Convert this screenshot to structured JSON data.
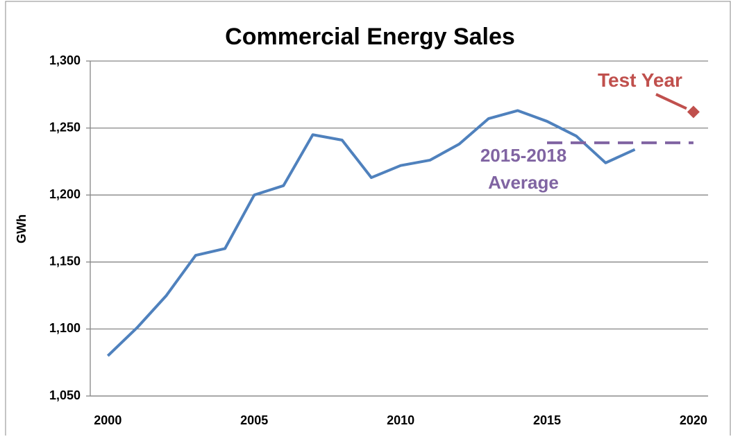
{
  "chart_data": {
    "type": "line",
    "title": "Commercial Energy Sales",
    "ylabel": "GWh",
    "xlim": [
      1999.4,
      2020.5
    ],
    "xticks": [
      2000,
      2005,
      2010,
      2015,
      2020
    ],
    "ylim": [
      1050,
      1300
    ],
    "yticks": [
      {
        "value": 1050,
        "label": "1,050"
      },
      {
        "value": 1100,
        "label": "1,100"
      },
      {
        "value": 1150,
        "label": "1,150"
      },
      {
        "value": 1200,
        "label": "1,200"
      },
      {
        "value": 1250,
        "label": "1,250"
      },
      {
        "value": 1300,
        "label": "1,300"
      }
    ],
    "grid": true,
    "series": [
      {
        "color": "#4f81bd",
        "x": [
          2000,
          2001,
          2002,
          2003,
          2004,
          2005,
          2006,
          2007,
          2008,
          2009,
          2010,
          2011,
          2012,
          2013,
          2014,
          2015,
          2016,
          2017,
          2018
        ],
        "values": [
          1080,
          1101,
          1125,
          1155,
          1160,
          1200,
          1207,
          1245,
          1241,
          1213,
          1222,
          1226,
          1238,
          1257,
          1263,
          1255,
          1244,
          1224,
          1234
        ]
      },
      {
        "color": "#8064a2",
        "dashed": true,
        "x": [
          2015,
          2020
        ],
        "values": [
          1239,
          1239
        ]
      },
      {
        "color": "#c0504d",
        "marker": "diamond",
        "x": [
          2020
        ],
        "values": [
          1262
        ]
      }
    ],
    "annotations": [
      {
        "text": [
          "Test Year"
        ],
        "color": "#c0504d"
      },
      {
        "text": [
          "2015-2018",
          "Average"
        ],
        "color": "#8064a2"
      }
    ]
  }
}
